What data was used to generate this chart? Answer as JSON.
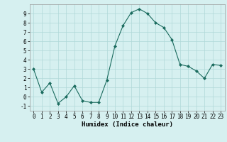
{
  "x": [
    0,
    1,
    2,
    3,
    4,
    5,
    6,
    7,
    8,
    9,
    10,
    11,
    12,
    13,
    14,
    15,
    16,
    17,
    18,
    19,
    20,
    21,
    22,
    23
  ],
  "y": [
    3.0,
    0.5,
    1.5,
    -0.7,
    0.0,
    1.2,
    -0.4,
    -0.6,
    -0.6,
    1.8,
    5.5,
    7.7,
    9.1,
    9.5,
    9.0,
    8.0,
    7.5,
    6.2,
    3.5,
    3.3,
    2.8,
    2.0,
    3.5,
    3.4
  ],
  "line_color": "#1a6b5e",
  "marker": "D",
  "markersize": 2.0,
  "linewidth": 0.8,
  "bg_color": "#d6f0f0",
  "grid_color": "#b0d8d8",
  "xlabel": "Humidex (Indice chaleur)",
  "ylim": [
    -1.5,
    10.0
  ],
  "xlim": [
    -0.5,
    23.5
  ],
  "yticks": [
    -1,
    0,
    1,
    2,
    3,
    4,
    5,
    6,
    7,
    8,
    9
  ],
  "xticks": [
    0,
    1,
    2,
    3,
    4,
    5,
    6,
    7,
    8,
    9,
    10,
    11,
    12,
    13,
    14,
    15,
    16,
    17,
    18,
    19,
    20,
    21,
    22,
    23
  ],
  "tick_fontsize": 5.5,
  "xlabel_fontsize": 6.5
}
